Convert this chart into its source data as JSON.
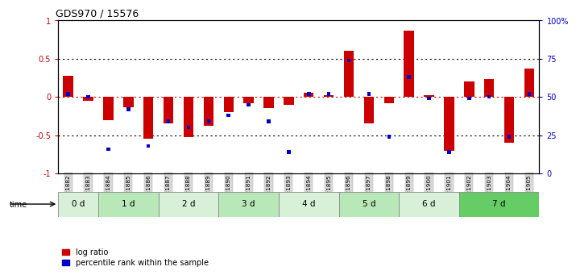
{
  "title": "GDS970 / 15576",
  "samples": [
    "GSM21882",
    "GSM21883",
    "GSM21884",
    "GSM21885",
    "GSM21886",
    "GSM21887",
    "GSM21888",
    "GSM21889",
    "GSM21890",
    "GSM21891",
    "GSM21892",
    "GSM21893",
    "GSM21894",
    "GSM21895",
    "GSM21896",
    "GSM21897",
    "GSM21898",
    "GSM21899",
    "GSM21900",
    "GSM21901",
    "GSM21902",
    "GSM21903",
    "GSM21904",
    "GSM21905"
  ],
  "log_ratio": [
    0.28,
    -0.05,
    -0.3,
    -0.13,
    -0.55,
    -0.35,
    -0.52,
    -0.38,
    -0.2,
    -0.08,
    -0.15,
    -0.1,
    0.05,
    0.02,
    0.6,
    -0.35,
    -0.08,
    0.87,
    0.02,
    -0.7,
    0.2,
    0.23,
    -0.6,
    0.37
  ],
  "percentile": [
    0.52,
    0.5,
    0.16,
    0.42,
    0.18,
    0.34,
    0.3,
    0.34,
    0.38,
    0.45,
    0.34,
    0.14,
    0.52,
    0.52,
    0.74,
    0.52,
    0.24,
    0.63,
    0.49,
    0.14,
    0.49,
    0.5,
    0.24,
    0.52
  ],
  "time_groups": [
    {
      "label": "0 d",
      "start": 0,
      "end": 2,
      "color": "#d8f0d8"
    },
    {
      "label": "1 d",
      "start": 2,
      "end": 5,
      "color": "#b8e8b8"
    },
    {
      "label": "2 d",
      "start": 5,
      "end": 8,
      "color": "#d8f0d8"
    },
    {
      "label": "3 d",
      "start": 8,
      "end": 11,
      "color": "#b8e8b8"
    },
    {
      "label": "4 d",
      "start": 11,
      "end": 14,
      "color": "#d8f0d8"
    },
    {
      "label": "5 d",
      "start": 14,
      "end": 17,
      "color": "#b8e8b8"
    },
    {
      "label": "6 d",
      "start": 17,
      "end": 20,
      "color": "#d8f0d8"
    },
    {
      "label": "7 d",
      "start": 20,
      "end": 24,
      "color": "#66cc66"
    }
  ],
  "bar_color_red": "#cc0000",
  "bar_color_blue": "#0000cc",
  "ylim": [
    -1,
    1
  ],
  "hline_dotted_color": "#cc0000",
  "dotted_color": "#000000",
  "legend_log_ratio": "log ratio",
  "legend_percentile": "percentile rank within the sample",
  "xtick_bg": "#d8d8d8"
}
